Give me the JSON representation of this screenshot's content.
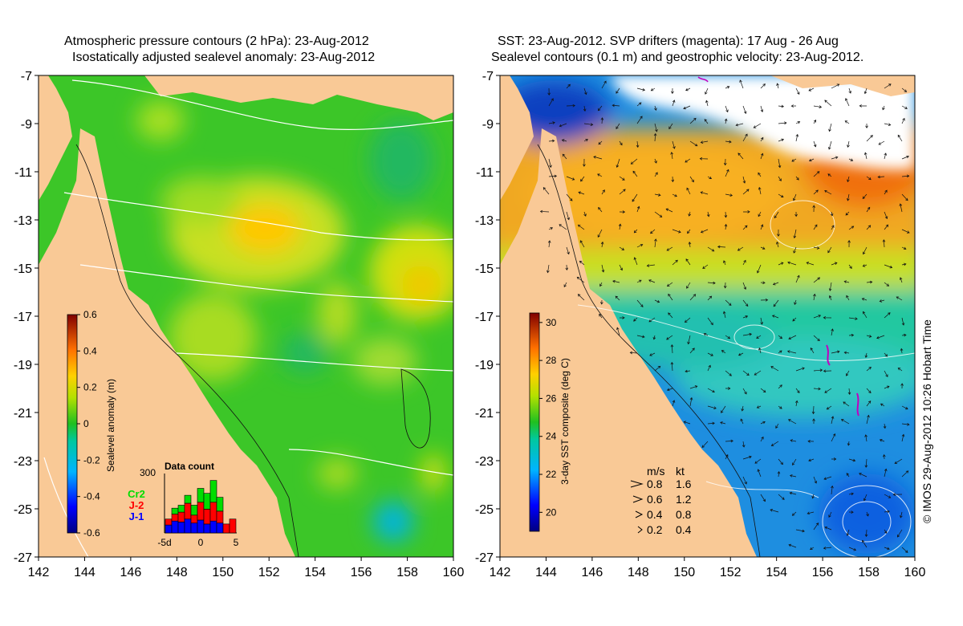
{
  "left_panel": {
    "title_line1": "Atmospheric pressure contours (2 hPa): 23-Aug-2012",
    "title_line2": "Isostatically adjusted sealevel anomaly: 23-Aug-2012",
    "colorbar": {
      "label": "Sealevel anomaly (m)",
      "ticks": [
        "0.6",
        "0.4",
        "0.2",
        "0",
        "-0.2",
        "-0.4",
        "-0.6"
      ],
      "tick_values": [
        0.6,
        0.4,
        0.2,
        0,
        -0.2,
        -0.4,
        -0.6
      ],
      "range": [
        -0.6,
        0.6
      ]
    },
    "data_count": {
      "title": "Data count",
      "y_tick": "300",
      "x_ticks": [
        "-5d",
        "0",
        "5"
      ],
      "legend": [
        {
          "label": "Cr2",
          "color": "#00dd00"
        },
        {
          "label": "J-2",
          "color": "#ff0000"
        },
        {
          "label": "J-1",
          "color": "#0000ff"
        }
      ],
      "bars_j1": [
        40,
        60,
        55,
        70,
        50,
        65,
        45,
        60,
        50,
        0,
        0
      ],
      "bars_j2": [
        30,
        35,
        50,
        80,
        40,
        90,
        75,
        95,
        60,
        45,
        70
      ],
      "bars_cr2": [
        0,
        30,
        35,
        40,
        50,
        70,
        80,
        110,
        70,
        0,
        0
      ],
      "y_max": 300
    }
  },
  "right_panel": {
    "title_line1": "SST: 23-Aug-2012. SVP drifters (magenta): 17 Aug - 26 Aug",
    "title_line2": "Sealevel contours (0.1 m) and geostrophic velocity: 23-Aug-2012.",
    "colorbar": {
      "label": "3-day SST composite (deg C)",
      "ticks": [
        "30",
        "28",
        "26",
        "24",
        "22",
        "20"
      ],
      "tick_values": [
        30,
        28,
        26,
        24,
        22,
        20
      ],
      "range": [
        19,
        30.5
      ]
    },
    "velocity_legend": {
      "header_ms": "m/s",
      "header_kt": "kt",
      "rows": [
        {
          "ms": "0.8",
          "kt": "1.6"
        },
        {
          "ms": "0.6",
          "kt": "1.2"
        },
        {
          "ms": "0.4",
          "kt": "0.8"
        },
        {
          "ms": "0.2",
          "kt": "0.4"
        }
      ]
    },
    "credit": "© IMOS 29-Aug-2012 10:26 Hobart Time"
  },
  "axes": {
    "x_ticks": [
      "142",
      "144",
      "146",
      "148",
      "150",
      "152",
      "154",
      "156",
      "158",
      "160"
    ],
    "x_values": [
      142,
      144,
      146,
      148,
      150,
      152,
      154,
      156,
      158,
      160
    ],
    "y_ticks": [
      "-7",
      "-9",
      "-11",
      "-13",
      "-15",
      "-17",
      "-19",
      "-21",
      "-23",
      "-25",
      "-27"
    ],
    "y_values": [
      -7,
      -9,
      -11,
      -13,
      -15,
      -17,
      -19,
      -21,
      -23,
      -25,
      -27
    ],
    "lon_range": [
      142,
      160
    ],
    "lat_range": [
      -27,
      -7
    ]
  },
  "colors": {
    "land": "#f9c996",
    "sla_background": "#3cc628",
    "sst_warm": "#f0a020",
    "sst_cool": "#1e8ee0",
    "cloud": "#ffffff"
  }
}
